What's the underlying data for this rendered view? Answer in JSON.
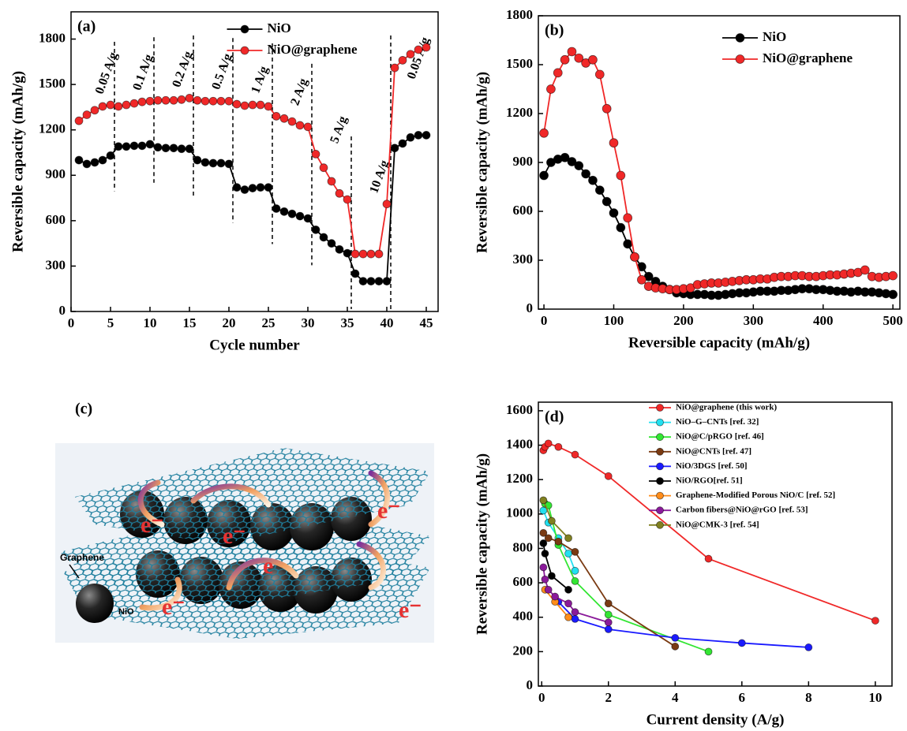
{
  "chart_data": [
    {
      "type": "line",
      "panel_label": "(a)",
      "xlabel": "Cycle number",
      "ylabel": "Reversible capacity (mAh/g)",
      "x": [
        1,
        2,
        3,
        4,
        5,
        6,
        7,
        8,
        9,
        10,
        11,
        12,
        13,
        14,
        15,
        16,
        17,
        18,
        19,
        20,
        21,
        22,
        23,
        24,
        25,
        26,
        27,
        28,
        29,
        30,
        31,
        32,
        33,
        34,
        35,
        36,
        37,
        38,
        39,
        40,
        41,
        42,
        43,
        44,
        45
      ],
      "xlim": [
        0,
        46.5
      ],
      "xticks": [
        0,
        5,
        10,
        15,
        20,
        25,
        30,
        35,
        40,
        45
      ],
      "ylim": [
        0,
        1980
      ],
      "yticks": [
        0,
        300,
        600,
        900,
        1200,
        1500,
        1800
      ],
      "legend": "upper center",
      "dividers": [
        5.5,
        10.5,
        15.5,
        20.5,
        25.5,
        30.5,
        35.5,
        40.5
      ],
      "annotations": [
        "0.05 A/g",
        "0.1 A/g",
        "0.2 A/g",
        "0.5 A/g",
        "1 A/g",
        "2 A/g",
        "5 A/g",
        "10 A/g",
        "0.05 A/g"
      ],
      "series": [
        {
          "name": "NiO",
          "color": "#000000",
          "values": [
            1000,
            975,
            985,
            1000,
            1030,
            1090,
            1090,
            1095,
            1095,
            1105,
            1085,
            1080,
            1080,
            1075,
            1075,
            1000,
            985,
            980,
            980,
            975,
            820,
            805,
            815,
            820,
            820,
            680,
            660,
            645,
            630,
            615,
            540,
            490,
            450,
            410,
            385,
            250,
            200,
            200,
            200,
            200,
            1080,
            1110,
            1150,
            1165,
            1165
          ]
        },
        {
          "name": "NiO@graphene",
          "color": "#f02828",
          "values": [
            1260,
            1300,
            1330,
            1355,
            1365,
            1355,
            1365,
            1375,
            1385,
            1390,
            1395,
            1395,
            1395,
            1400,
            1410,
            1395,
            1390,
            1390,
            1390,
            1390,
            1370,
            1360,
            1365,
            1365,
            1355,
            1290,
            1275,
            1255,
            1230,
            1220,
            1040,
            950,
            860,
            780,
            740,
            380,
            380,
            380,
            380,
            710,
            1610,
            1660,
            1700,
            1730,
            1745
          ]
        }
      ]
    },
    {
      "type": "line",
      "panel_label": "(b)",
      "xlabel": "Reversible capacity (mAh/g)",
      "ylabel": "Reversible capacity (mAh/g)",
      "x": [
        0,
        10,
        20,
        30,
        40,
        50,
        60,
        70,
        80,
        90,
        100,
        110,
        120,
        130,
        140,
        150,
        160,
        170,
        180,
        190,
        200,
        210,
        220,
        230,
        240,
        250,
        260,
        270,
        280,
        290,
        300,
        310,
        320,
        330,
        340,
        350,
        360,
        370,
        380,
        390,
        400,
        410,
        420,
        430,
        440,
        450,
        460,
        470,
        480,
        490,
        500
      ],
      "xlim": [
        -8,
        510
      ],
      "xticks": [
        0,
        100,
        200,
        300,
        400,
        500
      ],
      "ylim": [
        0,
        1800
      ],
      "yticks": [
        0,
        300,
        600,
        900,
        1200,
        1500,
        1800
      ],
      "legend": "upper right",
      "series": [
        {
          "name": "NiO",
          "color": "#000000",
          "values": [
            820,
            900,
            920,
            930,
            905,
            880,
            830,
            790,
            730,
            660,
            590,
            500,
            400,
            320,
            260,
            200,
            170,
            140,
            120,
            100,
            95,
            90,
            90,
            90,
            85,
            85,
            90,
            95,
            100,
            100,
            105,
            110,
            110,
            110,
            115,
            115,
            120,
            125,
            125,
            120,
            120,
            115,
            110,
            110,
            105,
            110,
            105,
            105,
            100,
            95,
            90
          ]
        },
        {
          "name": "NiO@graphene",
          "color": "#f02828",
          "values": [
            1080,
            1350,
            1450,
            1530,
            1580,
            1540,
            1510,
            1530,
            1440,
            1230,
            1020,
            820,
            560,
            320,
            180,
            140,
            130,
            125,
            120,
            120,
            125,
            130,
            150,
            155,
            160,
            160,
            165,
            170,
            175,
            180,
            180,
            185,
            185,
            195,
            200,
            200,
            205,
            205,
            200,
            200,
            205,
            210,
            210,
            215,
            220,
            225,
            240,
            200,
            195,
            200,
            205
          ]
        }
      ]
    },
    {
      "type": "line",
      "panel_label": "(d)",
      "xlabel": "Current density (A/g)",
      "ylabel": "Reversible capacity (mAh/g)",
      "xlim": [
        -0.1,
        10.5
      ],
      "xticks": [
        0,
        2,
        4,
        6,
        8,
        10
      ],
      "ylim": [
        0,
        1650
      ],
      "yticks": [
        0,
        200,
        400,
        600,
        800,
        1000,
        1200,
        1400,
        1600
      ],
      "legend": "upper right",
      "series": [
        {
          "name": "NiO@graphene (this work)",
          "color": "#f02828",
          "x": [
            0.05,
            0.1,
            0.2,
            0.5,
            1,
            2,
            5,
            10
          ],
          "values": [
            1370,
            1390,
            1410,
            1390,
            1345,
            1220,
            740,
            380
          ]
        },
        {
          "name": "NiO–G–CNTs [ref. 32]",
          "color": "#22e0f0",
          "x": [
            0.05,
            0.2,
            0.5,
            0.8,
            1
          ],
          "values": [
            1020,
            950,
            860,
            770,
            670
          ]
        },
        {
          "name": "NiO@C/pRGO [ref. 46]",
          "color": "#33e633",
          "x": [
            0.1,
            0.2,
            0.5,
            1,
            2,
            5
          ],
          "values": [
            1060,
            1050,
            820,
            610,
            415,
            200
          ]
        },
        {
          "name": "NiO@CNTs [ref. 47]",
          "color": "#7a3a12",
          "x": [
            0.05,
            0.2,
            0.5,
            1,
            2,
            4
          ],
          "values": [
            890,
            860,
            840,
            780,
            480,
            230
          ]
        },
        {
          "name": "NiO/3DGS [ref. 50]",
          "color": "#1a1aff",
          "x": [
            0.5,
            1,
            2,
            4,
            6,
            8
          ],
          "values": [
            490,
            390,
            330,
            280,
            250,
            225
          ]
        },
        {
          "name": "NiO/RGO[ref. 51]",
          "color": "#000000",
          "x": [
            0.05,
            0.1,
            0.3,
            0.8
          ],
          "values": [
            830,
            770,
            640,
            560
          ]
        },
        {
          "name": "Graphene-Modified Porous NiO/C [ref. 52]",
          "color": "#ff8c1a",
          "x": [
            0.1,
            0.4,
            0.8
          ],
          "values": [
            560,
            490,
            400
          ]
        },
        {
          "name": "Carbon fibers@NiO@rGO [ref. 53]",
          "color": "#8a1a9a",
          "x": [
            0.05,
            0.1,
            0.2,
            0.4,
            0.8,
            1,
            2
          ],
          "values": [
            690,
            620,
            560,
            520,
            480,
            430,
            370
          ]
        },
        {
          "name": "NiO@CMK-3 [ref. 54]",
          "color": "#808020",
          "x": [
            0.05,
            0.3,
            0.8
          ],
          "values": [
            1080,
            960,
            860
          ]
        }
      ]
    }
  ],
  "diagram": {
    "panel_label": "(c)",
    "graphene_label": "Graphene",
    "nio_label": "NiO",
    "electron_labels": [
      "e⁻",
      "e⁻",
      "e⁻",
      "e",
      "e⁻",
      "e⁻"
    ]
  }
}
